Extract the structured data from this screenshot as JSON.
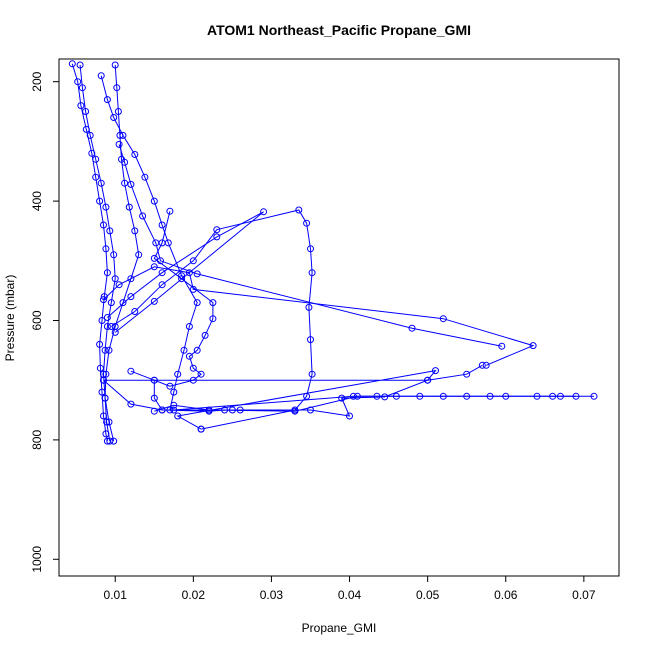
{
  "chart_data": {
    "type": "line",
    "title": "ATOM1 Northeast_Pacific Propane_GMI",
    "xlabel": "Propane_GMI",
    "ylabel": "Pressure (mbar)",
    "xlim": [
      0.0028,
      0.0745
    ],
    "ylim": [
      1028,
      162
    ],
    "y_inverted": true,
    "x_ticks": [
      0.01,
      0.02,
      0.03,
      0.04,
      0.05,
      0.06,
      0.07
    ],
    "x_tick_labels": [
      "0.01",
      "0.02",
      "0.03",
      "0.04",
      "0.05",
      "0.06",
      "0.07"
    ],
    "y_ticks": [
      200,
      400,
      600,
      800,
      1000
    ],
    "y_tick_labels": [
      "200",
      "400",
      "600",
      "800",
      "1000"
    ],
    "grid": false,
    "legend": "none",
    "marker": "open-circle",
    "series_color": "#0000ff",
    "series": [
      {
        "points": [
          [
            0.0045,
            170
          ],
          [
            0.0052,
            200
          ],
          [
            0.0056,
            240
          ],
          [
            0.0063,
            280
          ],
          [
            0.007,
            320
          ],
          [
            0.0075,
            360
          ],
          [
            0.008,
            400
          ],
          [
            0.0085,
            440
          ],
          [
            0.0088,
            480
          ],
          [
            0.009,
            520
          ],
          [
            0.0086,
            560
          ],
          [
            0.0083,
            600
          ],
          [
            0.008,
            640
          ],
          [
            0.0081,
            680
          ],
          [
            0.0083,
            720
          ],
          [
            0.0085,
            760
          ],
          [
            0.0088,
            790
          ],
          [
            0.009,
            802
          ]
        ]
      },
      {
        "points": [
          [
            0.0055,
            172
          ],
          [
            0.0058,
            210
          ],
          [
            0.0062,
            250
          ],
          [
            0.0068,
            290
          ],
          [
            0.0075,
            330
          ],
          [
            0.0082,
            370
          ],
          [
            0.0088,
            410
          ],
          [
            0.0093,
            450
          ],
          [
            0.0098,
            490
          ],
          [
            0.01,
            530
          ],
          [
            0.0095,
            570
          ],
          [
            0.009,
            610
          ],
          [
            0.0087,
            650
          ],
          [
            0.0085,
            690
          ],
          [
            0.0087,
            730
          ],
          [
            0.0092,
            770
          ],
          [
            0.0098,
            802
          ]
        ]
      },
      {
        "points": [
          [
            0.01,
            172
          ],
          [
            0.0102,
            210
          ],
          [
            0.0104,
            250
          ],
          [
            0.0106,
            290
          ],
          [
            0.0108,
            330
          ],
          [
            0.0112,
            370
          ],
          [
            0.0118,
            410
          ],
          [
            0.0125,
            450
          ],
          [
            0.013,
            490
          ],
          [
            0.012,
            530
          ],
          [
            0.011,
            570
          ],
          [
            0.01,
            610
          ],
          [
            0.0092,
            650
          ],
          [
            0.0088,
            690
          ],
          [
            0.0087,
            730
          ],
          [
            0.0089,
            770
          ],
          [
            0.0093,
            802
          ]
        ]
      },
      {
        "points": [
          [
            0.0082,
            190
          ],
          [
            0.009,
            230
          ],
          [
            0.0098,
            260
          ],
          [
            0.011,
            290
          ],
          [
            0.0125,
            322
          ],
          [
            0.0138,
            360
          ],
          [
            0.015,
            400
          ],
          [
            0.016,
            440
          ],
          [
            0.0168,
            470
          ],
          [
            0.0185,
            525
          ],
          [
            0.0205,
            570
          ],
          [
            0.0195,
            610
          ],
          [
            0.0188,
            650
          ],
          [
            0.018,
            690
          ],
          [
            0.0175,
            720
          ],
          [
            0.017,
            750
          ]
        ]
      },
      {
        "points": [
          [
            0.0105,
            305
          ],
          [
            0.0112,
            335
          ],
          [
            0.012,
            372
          ],
          [
            0.0135,
            425
          ],
          [
            0.0152,
            470
          ],
          [
            0.0158,
            500
          ],
          [
            0.0205,
            522
          ],
          [
            0.048,
            613
          ],
          [
            0.0595,
            643
          ]
        ]
      },
      {
        "points": [
          [
            0.0085,
            565
          ],
          [
            0.0105,
            540
          ],
          [
            0.015,
            510
          ],
          [
            0.0195,
            520
          ],
          [
            0.02,
            548
          ],
          [
            0.052,
            597
          ],
          [
            0.0635,
            642
          ],
          [
            0.0575,
            675
          ]
        ]
      },
      {
        "points": [
          [
            0.009,
            595
          ],
          [
            0.012,
            560
          ],
          [
            0.016,
            520
          ],
          [
            0.023,
            460
          ],
          [
            0.029,
            418
          ],
          [
            0.015,
            568
          ],
          [
            0.01,
            620
          ]
        ]
      },
      {
        "points": [
          [
            0.0095,
            610
          ],
          [
            0.0125,
            585
          ],
          [
            0.016,
            540
          ],
          [
            0.02,
            500
          ],
          [
            0.023,
            448
          ],
          [
            0.0335,
            415
          ],
          [
            0.0345,
            437
          ],
          [
            0.035,
            480
          ],
          [
            0.0352,
            520
          ],
          [
            0.0348,
            578
          ],
          [
            0.035,
            632
          ],
          [
            0.0352,
            690
          ],
          [
            0.0345,
            727
          ],
          [
            0.033,
            750
          ],
          [
            0.021,
            782
          ]
        ]
      },
      {
        "points": [
          [
            0.012,
            685
          ],
          [
            0.015,
            700
          ],
          [
            0.017,
            710
          ],
          [
            0.02,
            700
          ],
          [
            0.021,
            690
          ],
          [
            0.02,
            680
          ],
          [
            0.0195,
            660
          ],
          [
            0.0205,
            650
          ],
          [
            0.0215,
            625
          ],
          [
            0.0225,
            597
          ],
          [
            0.0225,
            570
          ],
          [
            0.0185,
            530
          ],
          [
            0.015,
            496
          ],
          [
            0.016,
            470
          ],
          [
            0.017,
            417
          ]
        ]
      },
      {
        "points": [
          [
            0.0085,
            700
          ],
          [
            0.012,
            740
          ],
          [
            0.016,
            750
          ],
          [
            0.025,
            750
          ],
          [
            0.035,
            750
          ],
          [
            0.04,
            760
          ],
          [
            0.039,
            730
          ],
          [
            0.0445,
            728
          ],
          [
            0.05,
            700
          ],
          [
            0.055,
            690
          ],
          [
            0.057,
            675
          ]
        ]
      },
      {
        "points": [
          [
            0.0085,
            700
          ],
          [
            0.05,
            700
          ],
          [
            0.051,
            684
          ],
          [
            0.018,
            760
          ],
          [
            0.021,
            782
          ]
        ]
      },
      {
        "points": [
          [
            0.015,
            700
          ],
          [
            0.015,
            730
          ],
          [
            0.016,
            750
          ],
          [
            0.022,
            752
          ],
          [
            0.024,
            750
          ],
          [
            0.026,
            750
          ]
        ]
      },
      {
        "points": [
          [
            0.015,
            752
          ],
          [
            0.0175,
            742
          ],
          [
            0.022,
            750
          ],
          [
            0.033,
            752
          ],
          [
            0.041,
            727
          ],
          [
            0.046,
            727
          ],
          [
            0.052,
            727
          ],
          [
            0.058,
            727
          ],
          [
            0.064,
            727
          ],
          [
            0.067,
            727
          ],
          [
            0.0713,
            727
          ]
        ]
      },
      {
        "points": [
          [
            0.0175,
            750
          ],
          [
            0.0405,
            727
          ],
          [
            0.0435,
            727
          ],
          [
            0.049,
            727
          ],
          [
            0.055,
            727
          ],
          [
            0.06,
            727
          ],
          [
            0.066,
            727
          ],
          [
            0.069,
            727
          ]
        ]
      }
    ]
  }
}
